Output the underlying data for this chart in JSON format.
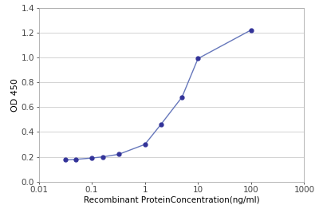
{
  "x_values": [
    0.032,
    0.05,
    0.1,
    0.16,
    0.32,
    1.0,
    2.0,
    5.0,
    10.0,
    100.0
  ],
  "y_values": [
    0.175,
    0.18,
    0.19,
    0.2,
    0.22,
    0.3,
    0.46,
    0.68,
    0.99,
    1.22
  ],
  "line_color": "#6677bb",
  "marker_color": "#333399",
  "xlabel": "Recombinant ProteinConcentration(ng/ml)",
  "ylabel": "OD 450",
  "xlim": [
    0.01,
    1000
  ],
  "ylim": [
    0,
    1.4
  ],
  "yticks": [
    0,
    0.2,
    0.4,
    0.6,
    0.8,
    1.0,
    1.2,
    1.4
  ],
  "xticks": [
    0.01,
    0.1,
    1,
    10,
    100,
    1000
  ],
  "xticklabels": [
    "0.01",
    "0.1",
    "1",
    "10",
    "100",
    "1000"
  ],
  "background_color": "#ffffff",
  "grid_color": "#cccccc",
  "axis_fontsize": 7.5,
  "tick_fontsize": 7.5,
  "ylabel_fontsize": 8
}
